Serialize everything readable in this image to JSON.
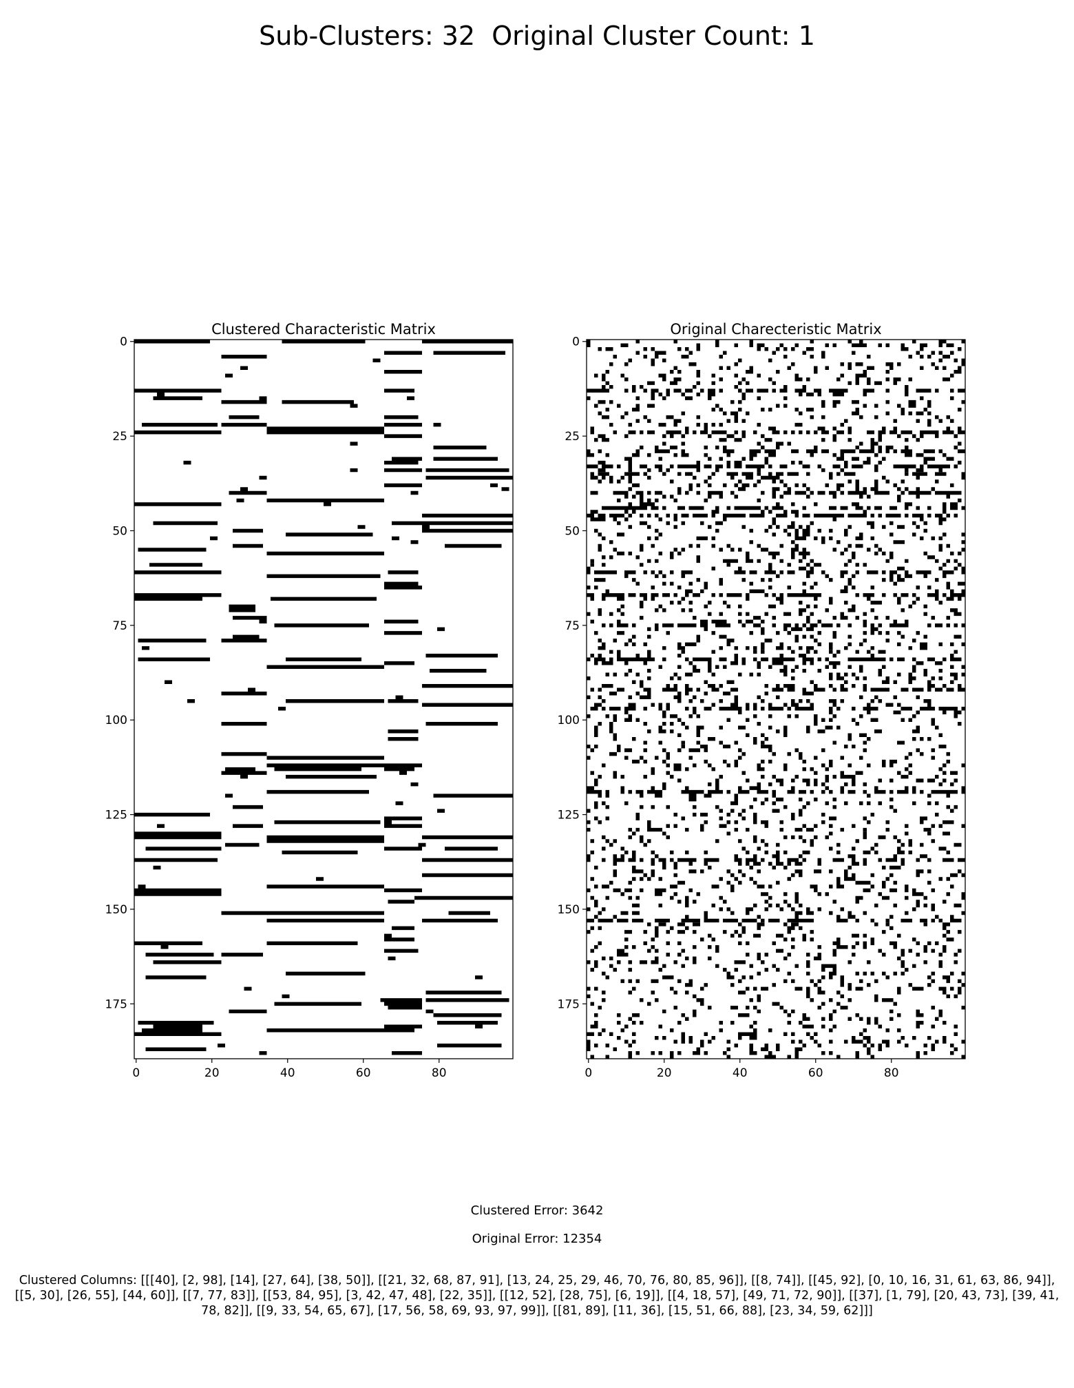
{
  "header": {
    "suptitle": "Sub-Clusters: 32  Original Cluster Count: 1"
  },
  "footer": {
    "clustered_error": "Clustered Error: 3642",
    "original_error": "Original Error: 12354",
    "clustered_columns": "Clustered Columns: [[[40], [2, 98], [14], [27, 64], [38, 50]], [[21, 32, 68, 87, 91], [13, 24, 25, 29, 46, 70, 76, 80, 85, 96]], [[8, 74]], [[45, 92], [0, 10, 16, 31, 61, 63, 86, 94]], [[5, 30], [26, 55], [44, 60]], [[7, 77, 83]], [[53, 84, 95], [3, 42, 47, 48], [22, 35]], [[12, 52], [28, 75], [6, 19]], [[4, 18, 57], [49, 71, 72, 90]], [[37], [1, 79], [20, 43, 73], [39, 41, 78, 82]], [[9, 33, 54, 65, 67], [17, 56, 58, 69, 93, 97, 99]], [[81, 89], [11, 36], [15, 51, 66, 88], [23, 34, 59, 62]]]"
  },
  "chart_data": [
    {
      "type": "heatmap",
      "title": "Clustered Characteristic Matrix",
      "colormap": "binary",
      "rows": 190,
      "cols": 100,
      "xlim": [
        0,
        99
      ],
      "ylim": [
        189,
        0
      ],
      "xticks": [
        0,
        20,
        40,
        60,
        80
      ],
      "yticks": [
        0,
        25,
        50,
        75,
        100,
        125,
        150,
        175
      ],
      "xlabel": "",
      "ylabel": "",
      "column_group_boundaries": [
        23,
        35,
        66,
        76
      ],
      "grid": false
    },
    {
      "type": "heatmap",
      "title": "Original Charecteristic Matrix",
      "colormap": "binary",
      "rows": 190,
      "cols": 100,
      "xlim": [
        0,
        99
      ],
      "ylim": [
        189,
        0
      ],
      "xticks": [
        0,
        20,
        40,
        60,
        80
      ],
      "yticks": [
        0,
        25,
        50,
        75,
        100,
        125,
        150,
        175
      ],
      "xlabel": "",
      "ylabel": "",
      "grid": false
    }
  ]
}
